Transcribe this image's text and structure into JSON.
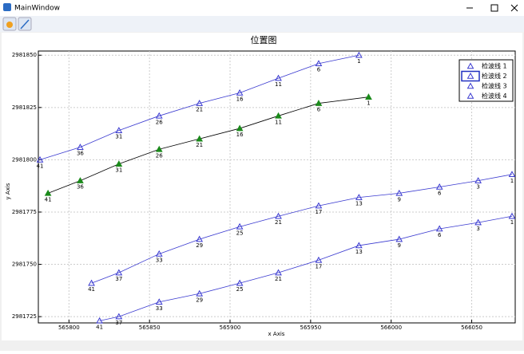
{
  "window": {
    "title": "MainWindow"
  },
  "chart_data": {
    "type": "scatter-line",
    "title": "位置图",
    "x_label": "x Axis",
    "y_label": "y Axis",
    "xlim": [
      565781,
      566077
    ],
    "ylim": [
      2981722,
      2981852
    ],
    "xticks": [
      565800,
      565850,
      565900,
      565950,
      566000,
      566050
    ],
    "yticks": [
      2981725,
      2981750,
      2981775,
      2981800,
      2981825,
      2981850
    ],
    "grid": true,
    "legend": "upper right",
    "series": [
      {
        "name": "检波线 1",
        "color": "#3a3ad0",
        "filled": false,
        "x": [
          565782,
          565807,
          565831,
          565856,
          565881,
          565906,
          565930,
          565955,
          565980
        ],
        "values": [
          2981800,
          2981806,
          2981814,
          2981821,
          2981827,
          2981832,
          2981839,
          2981846,
          2981850
        ],
        "point_labels": [
          "41",
          "36",
          "31",
          "26",
          "21",
          "16",
          "11",
          "6",
          "1"
        ]
      },
      {
        "name": "检波线 2",
        "color": "#1a8a1a",
        "filled": true,
        "x": [
          565787,
          565807,
          565831,
          565856,
          565881,
          565906,
          565930,
          565955,
          565986
        ],
        "values": [
          2981784,
          2981790,
          2981798,
          2981805,
          2981810,
          2981815,
          2981821,
          2981827,
          2981830
        ],
        "point_labels": [
          "41",
          "36",
          "31",
          "26",
          "21",
          "16",
          "11",
          "6",
          "1"
        ]
      },
      {
        "name": "检波线 3",
        "color": "#3a3ad0",
        "filled": false,
        "x": [
          565814,
          565831,
          565856,
          565881,
          565906,
          565930,
          565955,
          565980,
          566005,
          566030,
          566054,
          566075
        ],
        "values": [
          2981741,
          2981746,
          2981755,
          2981762,
          2981768,
          2981773,
          2981778,
          2981782,
          2981784,
          2981787,
          2981790,
          2981793
        ],
        "point_labels": [
          "41",
          "37",
          "33",
          "29",
          "25",
          "21",
          "17",
          "13",
          "9",
          "6",
          "3",
          "1"
        ]
      },
      {
        "name": "检波线 4",
        "color": "#3a3ad0",
        "filled": false,
        "x": [
          565819,
          565831,
          565856,
          565881,
          565906,
          565930,
          565955,
          565980,
          566005,
          566030,
          566054,
          566075
        ],
        "values": [
          2981723,
          2981725,
          2981732,
          2981736,
          2981741,
          2981746,
          2981752,
          2981759,
          2981762,
          2981767,
          2981770,
          2981773
        ],
        "point_labels": [
          "41",
          "37",
          "33",
          "29",
          "25",
          "21",
          "17",
          "13",
          "9",
          "6",
          "3",
          "1"
        ]
      }
    ]
  }
}
